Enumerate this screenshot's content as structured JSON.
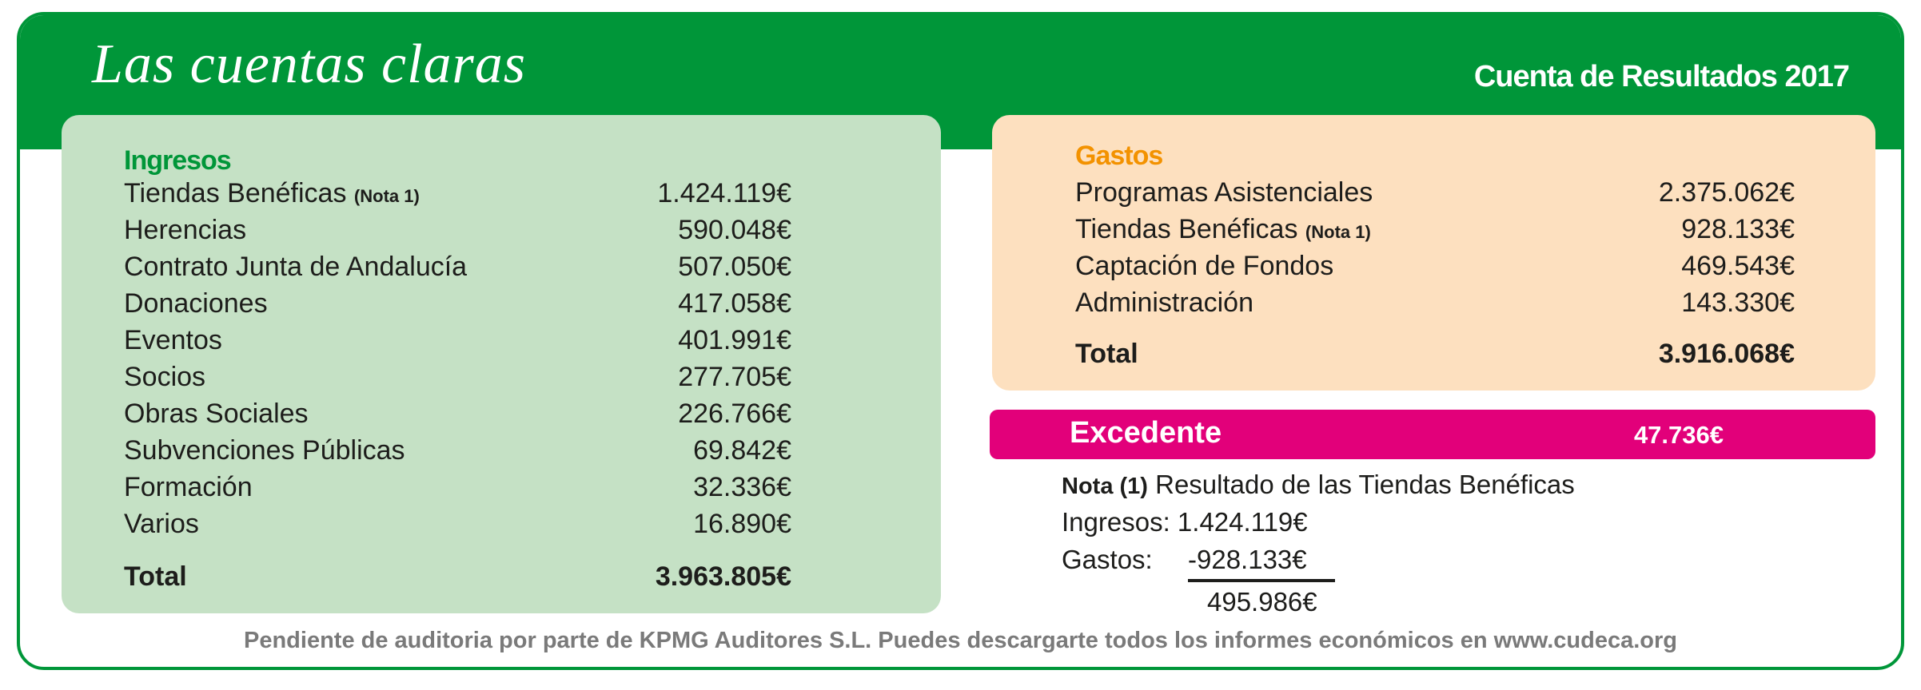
{
  "header": {
    "title": "Las cuentas claras",
    "subtitle": "Cuenta de Resultados 2017"
  },
  "colors": {
    "green": "#009639",
    "light_green": "#c5e1c5",
    "orange_panel": "#fde0bf",
    "orange_label": "#f39200",
    "magenta": "#e2007a"
  },
  "ingresos": {
    "heading": "Ingresos",
    "rows": [
      {
        "label": "Tiendas Benéficas",
        "note": "(Nota 1)",
        "value": "1.424.119€"
      },
      {
        "label": "Herencias",
        "value": "590.048€"
      },
      {
        "label": "Contrato Junta de Andalucía",
        "value": "507.050€"
      },
      {
        "label": "Donaciones",
        "value": "417.058€"
      },
      {
        "label": "Eventos",
        "value": "401.991€"
      },
      {
        "label": "Socios",
        "value": "277.705€"
      },
      {
        "label": "Obras Sociales",
        "value": "226.766€"
      },
      {
        "label": "Subvenciones Públicas",
        "value": "69.842€"
      },
      {
        "label": "Formación",
        "value": "32.336€"
      },
      {
        "label": "Varios",
        "value": "16.890€"
      }
    ],
    "total_label": "Total",
    "total_value": "3.963.805€"
  },
  "gastos": {
    "heading": "Gastos",
    "rows": [
      {
        "label": "Programas Asistenciales",
        "value": "2.375.062€"
      },
      {
        "label": "Tiendas Benéficas",
        "note": "(Nota 1)",
        "value": "928.133€"
      },
      {
        "label": "Captación de Fondos",
        "value": "469.543€"
      },
      {
        "label": "Administración",
        "value": "143.330€"
      }
    ],
    "total_label": "Total",
    "total_value": "3.916.068€"
  },
  "excedente": {
    "label": "Excedente",
    "value": "47.736€"
  },
  "nota": {
    "title_bold": "Nota (1)",
    "title": "Resultado de las Tiendas Benéficas",
    "ingresos_label": "Ingresos:",
    "ingresos_value": "1.424.119€",
    "gastos_label": "Gastos:",
    "gastos_value": "-928.133€",
    "result": "495.986€"
  },
  "footer": "Pendiente de auditoria por parte de KPMG Auditores S.L.  Puedes descargarte todos los informes económicos en www.cudeca.org"
}
